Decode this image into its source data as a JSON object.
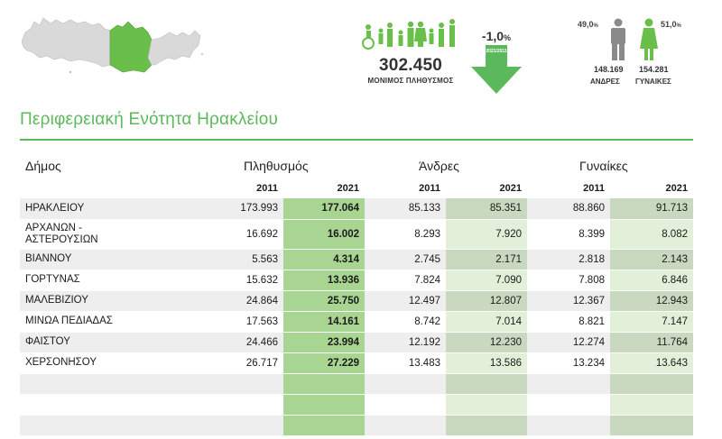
{
  "header": {
    "population_total": "302.450",
    "population_label": "ΜΟΝΙΜΟΣ ΠΛΗΘΥΣΜΟΣ",
    "change_value": "-1,0",
    "change_unit": "%",
    "change_period": "2021/2011",
    "men_pct": "49,0",
    "women_pct": "51,0",
    "pct_unit": "%",
    "men_total": "148.169",
    "women_total": "154.281",
    "men_label": "ΑΝΔΡΕΣ",
    "women_label": "ΓΥΝΑΙΚΕΣ"
  },
  "colors": {
    "accent_green": "#5cb85c",
    "highlight_green": "#a8d592",
    "map_region": "#6abf4b",
    "map_other": "#d9d9d9"
  },
  "region_title": "Περιφερειακή Ενότητα Ηρακλείου",
  "table": {
    "col_municipality": "Δήμος",
    "col_population": "Πληθυσμός",
    "col_men": "Άνδρες",
    "col_women": "Γυναίκες",
    "year_a": "2011",
    "year_b": "2021",
    "rows": [
      {
        "name": "ΗΡΑΚΛΕΙΟΥ",
        "pop2011": "173.993",
        "pop2021": "177.064",
        "men2011": "85.133",
        "men2021": "85.351",
        "women2011": "88.860",
        "women2021": "91.713"
      },
      {
        "name": "ΑΡΧΑΝΩΝ - ΑΣΤΕΡΟΥΣΙΩΝ",
        "pop2011": "16.692",
        "pop2021": "16.002",
        "men2011": "8.293",
        "men2021": "7.920",
        "women2011": "8.399",
        "women2021": "8.082"
      },
      {
        "name": "ΒΙΑΝΝΟΥ",
        "pop2011": "5.563",
        "pop2021": "4.314",
        "men2011": "2.745",
        "men2021": "2.171",
        "women2011": "2.818",
        "women2021": "2.143"
      },
      {
        "name": "ΓΟΡΤΥΝΑΣ",
        "pop2011": "15.632",
        "pop2021": "13.936",
        "men2011": "7.824",
        "men2021": "7.090",
        "women2011": "7.808",
        "women2021": "6.846"
      },
      {
        "name": "ΜΑΛΕΒΙΖΙΟΥ",
        "pop2011": "24.864",
        "pop2021": "25.750",
        "men2011": "12.497",
        "men2021": "12.807",
        "women2011": "12.367",
        "women2021": "12.943"
      },
      {
        "name": "ΜΙΝΩΑ ΠΕΔΙΑΔΑΣ",
        "pop2011": "17.563",
        "pop2021": "14.161",
        "men2011": "8.742",
        "men2021": "7.014",
        "women2011": "8.821",
        "women2021": "7.147"
      },
      {
        "name": "ΦΑΙΣΤΟΥ",
        "pop2011": "24.466",
        "pop2021": "23.994",
        "men2011": "12.192",
        "men2021": "12.230",
        "women2011": "12.274",
        "women2021": "11.764"
      },
      {
        "name": "ΧΕΡΣΟΝΗΣΟΥ",
        "pop2011": "26.717",
        "pop2021": "27.229",
        "men2011": "13.483",
        "men2021": "13.586",
        "women2011": "13.234",
        "women2021": "13.643"
      },
      {
        "name": "",
        "pop2011": "",
        "pop2021": "",
        "men2011": "",
        "men2021": "",
        "women2011": "",
        "women2021": ""
      },
      {
        "name": "",
        "pop2011": "",
        "pop2021": "",
        "men2011": "",
        "men2021": "",
        "women2011": "",
        "women2021": ""
      },
      {
        "name": "",
        "pop2011": "",
        "pop2021": "",
        "men2011": "",
        "men2021": "",
        "women2011": "",
        "women2021": ""
      }
    ]
  }
}
